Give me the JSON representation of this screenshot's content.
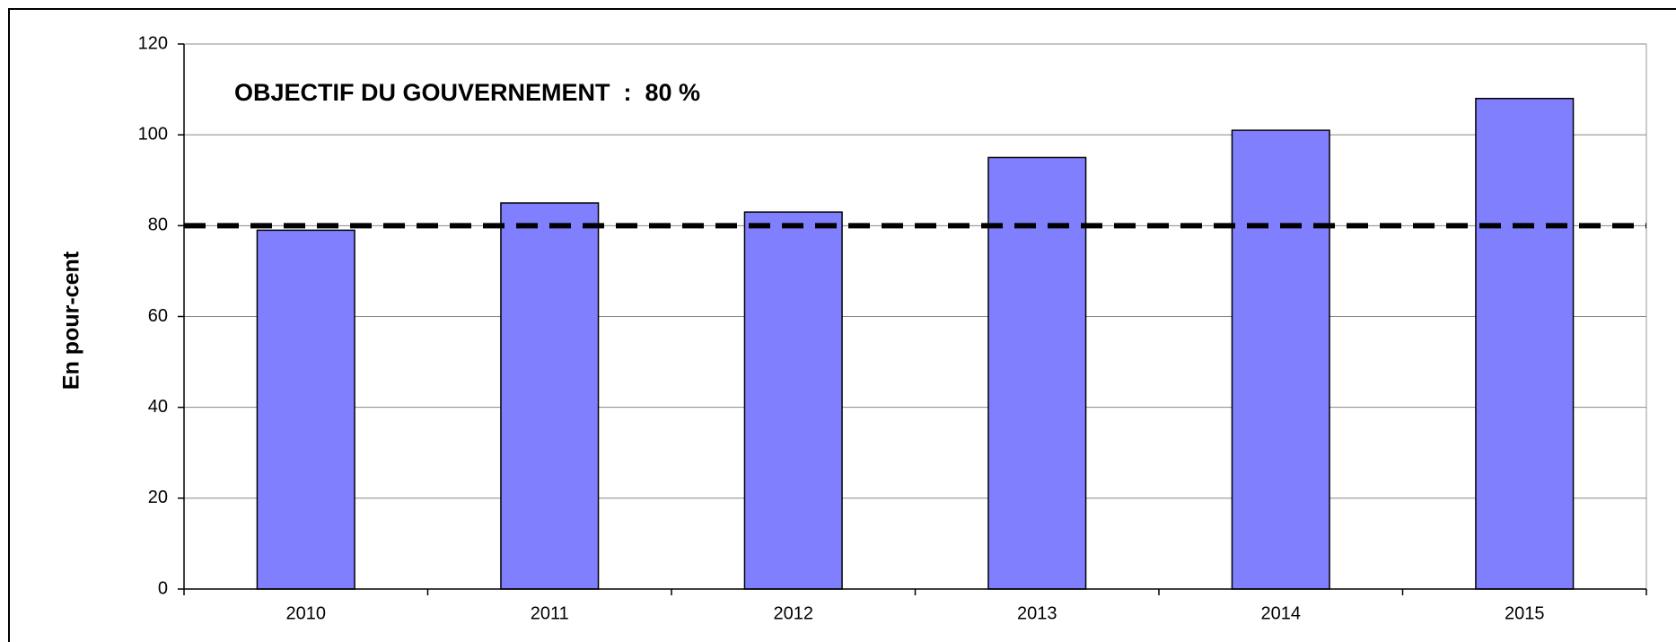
{
  "chart_data": {
    "type": "bar",
    "annotation": "OBJECTIF DU GOUVERNEMENT  :  80 %",
    "ylabel": "En pour-cent",
    "categories": [
      "2010",
      "2011",
      "2012",
      "2013",
      "2014",
      "2015"
    ],
    "values": [
      79,
      85,
      83,
      95,
      101,
      108
    ],
    "color": "#8080ff",
    "reference_line": 80,
    "ylim": [
      0,
      120
    ],
    "yticks": [
      0,
      20,
      40,
      60,
      80,
      100,
      120
    ],
    "grid": true
  }
}
